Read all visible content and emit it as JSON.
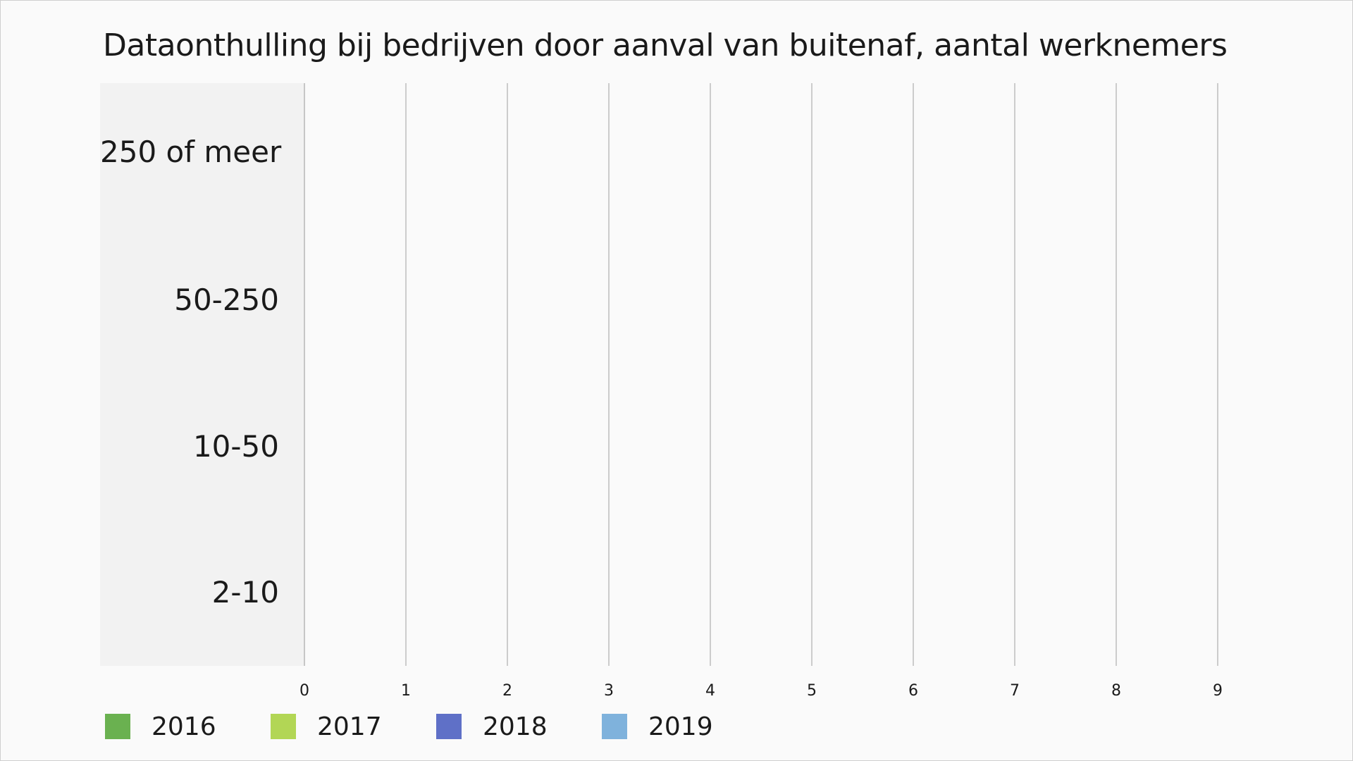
{
  "chart_data": {
    "type": "bar",
    "orientation": "horizontal",
    "title": "Dataonthulling bij bedrijven door aanval van buitenaf, aantal werknemers",
    "categories": [
      "250 of meer",
      "50-250",
      "10-50",
      "2-10"
    ],
    "series": [
      {
        "name": "2016",
        "color": "#6ab150",
        "values": [
          null,
          null,
          null,
          null
        ]
      },
      {
        "name": "2017",
        "color": "#b2d655",
        "values": [
          null,
          null,
          null,
          null
        ]
      },
      {
        "name": "2018",
        "color": "#5f70c7",
        "values": [
          null,
          null,
          null,
          null
        ]
      },
      {
        "name": "2019",
        "color": "#7fb2dc",
        "values": [
          null,
          null,
          null,
          null
        ]
      }
    ],
    "x_ticks": [
      "0",
      "1",
      "2",
      "3",
      "4",
      "5",
      "6",
      "7",
      "8",
      "9"
    ],
    "xlim": [
      0,
      9
    ],
    "grid": "vertical",
    "legend_position": "bottom-left"
  }
}
